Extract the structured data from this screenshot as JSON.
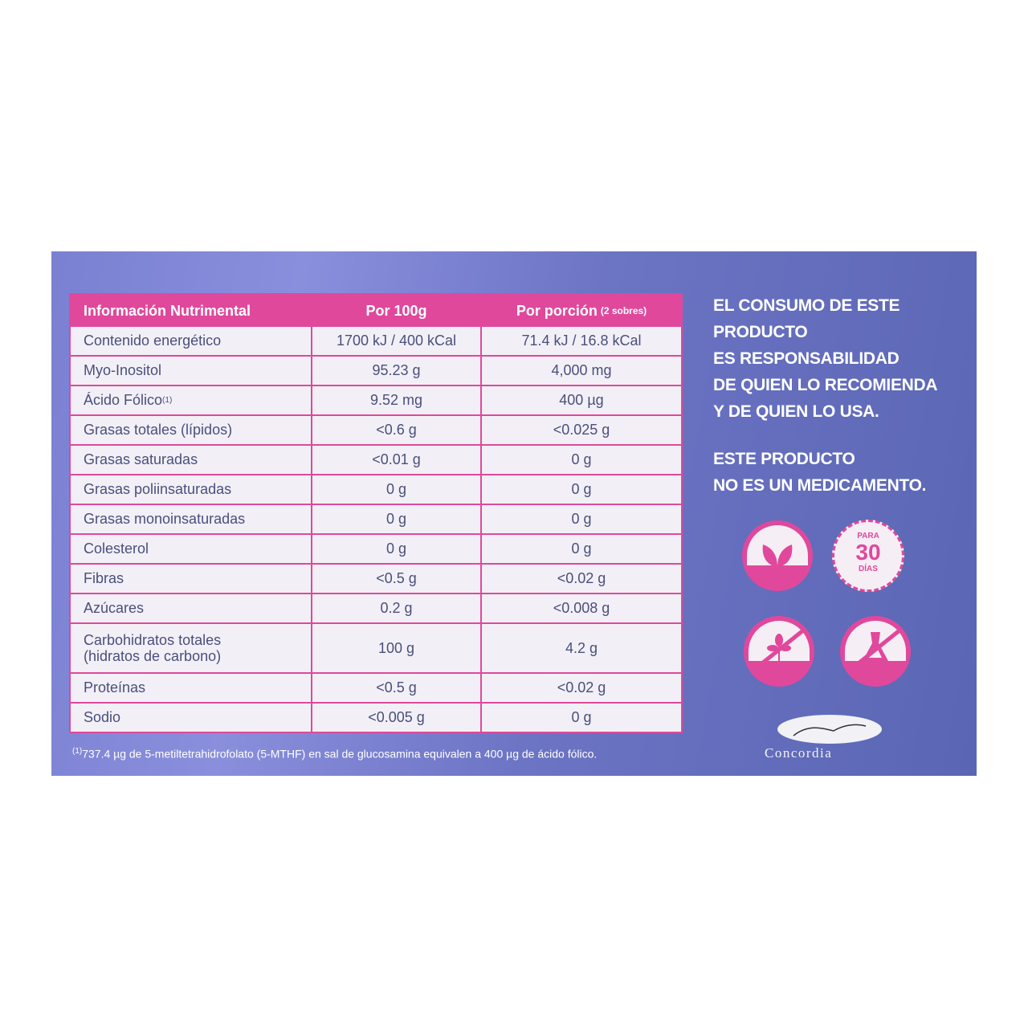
{
  "table": {
    "headers": [
      "Información Nutrimental",
      "Por 100g",
      "Por porción",
      "(2 sobres)"
    ],
    "rows": [
      {
        "name": "Contenido energético",
        "per100": "1700 kJ / 400 kCal",
        "portion": "71.4 kJ /  16.8 kCal"
      },
      {
        "name": "Myo-Inositol",
        "per100": "95.23 g",
        "portion": "4,000 mg"
      },
      {
        "name": "Ácido Fólico",
        "sup": "(1)",
        "per100": "9.52 mg",
        "portion": "400 µg"
      },
      {
        "name": "Grasas totales (lípidos)",
        "per100": "<0.6 g",
        "portion": "<0.025 g"
      },
      {
        "name": "Grasas saturadas",
        "per100": "<0.01 g",
        "portion": "0 g"
      },
      {
        "name": "Grasas poliinsaturadas",
        "per100": "0 g",
        "portion": "0 g"
      },
      {
        "name": "Grasas monoinsaturadas",
        "per100": "0 g",
        "portion": "0 g"
      },
      {
        "name": "Colesterol",
        "per100": "0 g",
        "portion": "0 g"
      },
      {
        "name": "Fibras",
        "per100": "<0.5 g",
        "portion": "<0.02 g"
      },
      {
        "name": "Azúcares",
        "per100": "0.2 g",
        "portion": "<0.008 g"
      },
      {
        "name": "Carbohidratos totales",
        "name2": "(hidratos de carbono)",
        "per100": "100 g",
        "portion": "4.2 g"
      },
      {
        "name": "Proteínas",
        "per100": "<0.5 g",
        "portion": "<0.02 g"
      },
      {
        "name": "Sodio",
        "per100": "<0.005 g",
        "portion": "0 g"
      }
    ]
  },
  "footnote": {
    "mark": "(1)",
    "text": "737.4 µg de 5-metiltetrahidrofolato (5-MTHF) en sal de glucosamina equivalen a 400 µg de ácido fólico."
  },
  "side": {
    "warning": [
      "EL CONSUMO DE ESTE",
      "PRODUCTO",
      "ES RESPONSABILIDAD",
      "DE QUIEN LO RECOMIENDA",
      "Y DE QUIEN LO USA."
    ],
    "notice": [
      "ESTE PRODUCTO",
      "NO ES UN MEDICAMENTO."
    ]
  },
  "badges": {
    "days_top": "PARA",
    "days_num": "30",
    "days_bottom": "DÍAS",
    "icons": [
      "leaves-icon",
      "gluten-free-icon",
      "no-lab-flask-icon"
    ]
  },
  "brand": "Concordia",
  "colors": {
    "accent": "#e0489c",
    "panel": "#6c74c4"
  }
}
